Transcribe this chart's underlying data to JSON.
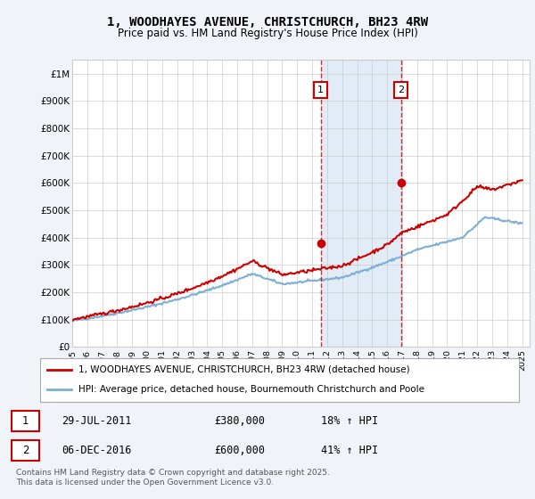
{
  "title_line1": "1, WOODHAYES AVENUE, CHRISTCHURCH, BH23 4RW",
  "title_line2": "Price paid vs. HM Land Registry's House Price Index (HPI)",
  "ylabel_ticks": [
    "£0",
    "£100K",
    "£200K",
    "£300K",
    "£400K",
    "£500K",
    "£600K",
    "£700K",
    "£800K",
    "£900K",
    "£1M"
  ],
  "ytick_values": [
    0,
    100000,
    200000,
    300000,
    400000,
    500000,
    600000,
    700000,
    800000,
    900000,
    1000000
  ],
  "ylim": [
    0,
    1050000
  ],
  "xlim_start": 1995.0,
  "xlim_end": 2025.5,
  "xtick_years": [
    1995,
    1996,
    1997,
    1998,
    1999,
    2000,
    2001,
    2002,
    2003,
    2004,
    2005,
    2006,
    2007,
    2008,
    2009,
    2010,
    2011,
    2012,
    2013,
    2014,
    2015,
    2016,
    2017,
    2018,
    2019,
    2020,
    2021,
    2022,
    2023,
    2024,
    2025
  ],
  "hpi_line_color": "#7bafd4",
  "price_line_color": "#cc0000",
  "vline1_x": 2011.57,
  "vline2_x": 2016.92,
  "point1_x": 2011.57,
  "point1_y": 380000,
  "point2_x": 2016.92,
  "point2_y": 600000,
  "annotation1_label": "1",
  "annotation2_label": "2",
  "legend_line1": "1, WOODHAYES AVENUE, CHRISTCHURCH, BH23 4RW (detached house)",
  "legend_line2": "HPI: Average price, detached house, Bournemouth Christchurch and Poole",
  "table_row1": [
    "1",
    "29-JUL-2011",
    "£380,000",
    "18% ↑ HPI"
  ],
  "table_row2": [
    "2",
    "06-DEC-2016",
    "£600,000",
    "41% ↑ HPI"
  ],
  "footnote": "Contains HM Land Registry data © Crown copyright and database right 2025.\nThis data is licensed under the Open Government Licence v3.0.",
  "background_color": "#f0f4f8",
  "plot_bg_color": "#ffffff",
  "shade_color": "#d0e0f0"
}
